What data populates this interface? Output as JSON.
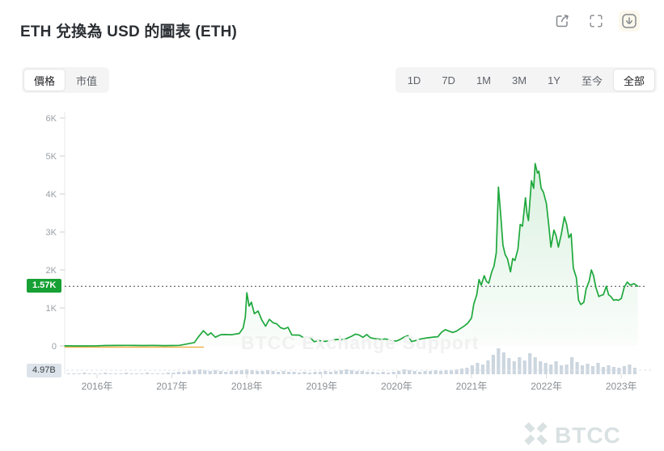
{
  "header": {
    "title": "ETH 兌換為 USD 的圖表 (ETH)",
    "icons": [
      "share-icon",
      "fullscreen-icon",
      "download-icon"
    ]
  },
  "toolbar": {
    "tabs": [
      {
        "label": "價格",
        "active": true
      },
      {
        "label": "市值",
        "active": false
      }
    ],
    "ranges": [
      {
        "label": "1D",
        "active": false
      },
      {
        "label": "7D",
        "active": false
      },
      {
        "label": "1M",
        "active": false
      },
      {
        "label": "3M",
        "active": false
      },
      {
        "label": "1Y",
        "active": false
      },
      {
        "label": "至今",
        "active": false
      },
      {
        "label": "全部",
        "active": true
      }
    ]
  },
  "watermark": {
    "text": "BTCC Exchange Support"
  },
  "brand": {
    "name": "BTCC"
  },
  "colors": {
    "line": "#1ea83c",
    "fill_top": "rgba(30,168,60,0.14)",
    "fill_bottom": "rgba(30,168,60,0.03)",
    "volume_bar": "#ccd6df",
    "price_badge_bg": "#17a034",
    "volume_badge_bg": "#dce3ea",
    "dotted_line": "#41464b",
    "axis": "#e8e8e8",
    "orange_segment": "#eeb14a"
  },
  "chart_data": {
    "type": "line",
    "title": "ETH 兌換為 USD 的圖表 (ETH)",
    "legend": "ETH/USD",
    "grid": false,
    "y_ticks": [
      "0",
      "1K",
      "2K",
      "3K",
      "4K",
      "5K",
      "6K"
    ],
    "y_tick_values": [
      0,
      1000,
      2000,
      3000,
      4000,
      5000,
      6000
    ],
    "ylim": [
      0,
      6000
    ],
    "x_ticks": [
      "2016年",
      "2017年",
      "2018年",
      "2019年",
      "2020年",
      "2021年",
      "2022年",
      "2023年"
    ],
    "x_tick_years": [
      2016,
      2017,
      2018,
      2019,
      2020,
      2021,
      2022,
      2023
    ],
    "xlim": [
      2015.57,
      2023.3
    ],
    "current_price_label": "1.57K",
    "current_price_value": 1570,
    "volume_label": "4.97B",
    "series": [
      {
        "name": "ETH/USD",
        "points": [
          [
            2015.57,
            3
          ],
          [
            2015.7,
            1
          ],
          [
            2015.85,
            1
          ],
          [
            2016.0,
            2
          ],
          [
            2016.1,
            10
          ],
          [
            2016.25,
            12
          ],
          [
            2016.4,
            14
          ],
          [
            2016.5,
            12
          ],
          [
            2016.6,
            11
          ],
          [
            2016.75,
            12
          ],
          [
            2016.9,
            8
          ],
          [
            2017.0,
            10
          ],
          [
            2017.1,
            15
          ],
          [
            2017.2,
            50
          ],
          [
            2017.3,
            90
          ],
          [
            2017.35,
            230
          ],
          [
            2017.42,
            400
          ],
          [
            2017.48,
            280
          ],
          [
            2017.52,
            345
          ],
          [
            2017.58,
            230
          ],
          [
            2017.65,
            295
          ],
          [
            2017.7,
            300
          ],
          [
            2017.8,
            295
          ],
          [
            2017.9,
            330
          ],
          [
            2017.95,
            470
          ],
          [
            2017.98,
            760
          ],
          [
            2018.0,
            1400
          ],
          [
            2018.03,
            1050
          ],
          [
            2018.06,
            1150
          ],
          [
            2018.1,
            850
          ],
          [
            2018.15,
            920
          ],
          [
            2018.2,
            680
          ],
          [
            2018.25,
            520
          ],
          [
            2018.3,
            700
          ],
          [
            2018.35,
            610
          ],
          [
            2018.4,
            580
          ],
          [
            2018.45,
            480
          ],
          [
            2018.5,
            450
          ],
          [
            2018.55,
            490
          ],
          [
            2018.6,
            290
          ],
          [
            2018.7,
            285
          ],
          [
            2018.75,
            230
          ],
          [
            2018.85,
            215
          ],
          [
            2018.9,
            110
          ],
          [
            2018.95,
            140
          ],
          [
            2019.0,
            130
          ],
          [
            2019.05,
            120
          ],
          [
            2019.1,
            140
          ],
          [
            2019.2,
            170
          ],
          [
            2019.3,
            165
          ],
          [
            2019.4,
            255
          ],
          [
            2019.45,
            310
          ],
          [
            2019.5,
            290
          ],
          [
            2019.55,
            225
          ],
          [
            2019.6,
            300
          ],
          [
            2019.65,
            215
          ],
          [
            2019.7,
            195
          ],
          [
            2019.8,
            170
          ],
          [
            2019.85,
            185
          ],
          [
            2019.95,
            135
          ],
          [
            2020.0,
            130
          ],
          [
            2020.05,
            175
          ],
          [
            2020.1,
            235
          ],
          [
            2020.15,
            270
          ],
          [
            2020.2,
            115
          ],
          [
            2020.25,
            140
          ],
          [
            2020.3,
            175
          ],
          [
            2020.4,
            210
          ],
          [
            2020.5,
            235
          ],
          [
            2020.55,
            240
          ],
          [
            2020.6,
            360
          ],
          [
            2020.65,
            430
          ],
          [
            2020.7,
            390
          ],
          [
            2020.75,
            355
          ],
          [
            2020.8,
            390
          ],
          [
            2020.85,
            455
          ],
          [
            2020.9,
            520
          ],
          [
            2020.95,
            600
          ],
          [
            2021.0,
            735
          ],
          [
            2021.03,
            1100
          ],
          [
            2021.07,
            1350
          ],
          [
            2021.1,
            1750
          ],
          [
            2021.13,
            1600
          ],
          [
            2021.17,
            1850
          ],
          [
            2021.2,
            1700
          ],
          [
            2021.23,
            1650
          ],
          [
            2021.27,
            1950
          ],
          [
            2021.3,
            2100
          ],
          [
            2021.33,
            2450
          ],
          [
            2021.36,
            4180
          ],
          [
            2021.39,
            3450
          ],
          [
            2021.42,
            2650
          ],
          [
            2021.45,
            2400
          ],
          [
            2021.48,
            2300
          ],
          [
            2021.52,
            1950
          ],
          [
            2021.55,
            2300
          ],
          [
            2021.58,
            2250
          ],
          [
            2021.62,
            2550
          ],
          [
            2021.65,
            3200
          ],
          [
            2021.68,
            3150
          ],
          [
            2021.72,
            3900
          ],
          [
            2021.74,
            3500
          ],
          [
            2021.76,
            3300
          ],
          [
            2021.8,
            4350
          ],
          [
            2021.83,
            4150
          ],
          [
            2021.85,
            4800
          ],
          [
            2021.88,
            4550
          ],
          [
            2021.9,
            4600
          ],
          [
            2021.93,
            4150
          ],
          [
            2021.96,
            4050
          ],
          [
            2022.0,
            3750
          ],
          [
            2022.03,
            3200
          ],
          [
            2022.06,
            2600
          ],
          [
            2022.1,
            3050
          ],
          [
            2022.13,
            2900
          ],
          [
            2022.16,
            2600
          ],
          [
            2022.2,
            2950
          ],
          [
            2022.24,
            3400
          ],
          [
            2022.27,
            3200
          ],
          [
            2022.3,
            2850
          ],
          [
            2022.33,
            2950
          ],
          [
            2022.36,
            2050
          ],
          [
            2022.4,
            1800
          ],
          [
            2022.43,
            1200
          ],
          [
            2022.46,
            1090
          ],
          [
            2022.5,
            1150
          ],
          [
            2022.53,
            1500
          ],
          [
            2022.57,
            1700
          ],
          [
            2022.6,
            2000
          ],
          [
            2022.63,
            1850
          ],
          [
            2022.66,
            1550
          ],
          [
            2022.7,
            1300
          ],
          [
            2022.73,
            1330
          ],
          [
            2022.76,
            1350
          ],
          [
            2022.8,
            1570
          ],
          [
            2022.83,
            1350
          ],
          [
            2022.86,
            1300
          ],
          [
            2022.9,
            1200
          ],
          [
            2022.93,
            1220
          ],
          [
            2022.96,
            1200
          ],
          [
            2023.0,
            1250
          ],
          [
            2023.04,
            1550
          ],
          [
            2023.08,
            1680
          ],
          [
            2023.12,
            1600
          ],
          [
            2023.17,
            1640
          ],
          [
            2023.22,
            1570
          ]
        ]
      }
    ],
    "volume_bars": [
      [
        2015.62,
        1
      ],
      [
        2015.69,
        1
      ],
      [
        2015.76,
        1
      ],
      [
        2015.83,
        2
      ],
      [
        2015.9,
        1
      ],
      [
        2015.97,
        1
      ],
      [
        2016.04,
        1
      ],
      [
        2016.11,
        2
      ],
      [
        2016.18,
        1
      ],
      [
        2016.25,
        1
      ],
      [
        2016.32,
        1
      ],
      [
        2016.39,
        2
      ],
      [
        2016.46,
        1
      ],
      [
        2016.53,
        1
      ],
      [
        2016.6,
        1
      ],
      [
        2016.67,
        2
      ],
      [
        2016.74,
        1
      ],
      [
        2016.81,
        1
      ],
      [
        2016.88,
        1
      ],
      [
        2016.95,
        2
      ],
      [
        2017.02,
        2
      ],
      [
        2017.09,
        3
      ],
      [
        2017.16,
        3
      ],
      [
        2017.23,
        4
      ],
      [
        2017.3,
        5
      ],
      [
        2017.37,
        6
      ],
      [
        2017.44,
        5
      ],
      [
        2017.51,
        4
      ],
      [
        2017.58,
        5
      ],
      [
        2017.65,
        4
      ],
      [
        2017.72,
        3
      ],
      [
        2017.79,
        4
      ],
      [
        2017.86,
        4
      ],
      [
        2017.93,
        5
      ],
      [
        2018.0,
        6
      ],
      [
        2018.07,
        5
      ],
      [
        2018.14,
        4
      ],
      [
        2018.21,
        4
      ],
      [
        2018.28,
        5
      ],
      [
        2018.35,
        4
      ],
      [
        2018.42,
        3
      ],
      [
        2018.49,
        4
      ],
      [
        2018.56,
        3
      ],
      [
        2018.63,
        3
      ],
      [
        2018.7,
        2
      ],
      [
        2018.77,
        3
      ],
      [
        2018.84,
        2
      ],
      [
        2018.91,
        3
      ],
      [
        2018.98,
        3
      ],
      [
        2019.05,
        4
      ],
      [
        2019.12,
        3
      ],
      [
        2019.19,
        4
      ],
      [
        2019.26,
        5
      ],
      [
        2019.33,
        6
      ],
      [
        2019.4,
        5
      ],
      [
        2019.47,
        4
      ],
      [
        2019.54,
        4
      ],
      [
        2019.61,
        3
      ],
      [
        2019.68,
        3
      ],
      [
        2019.75,
        2
      ],
      [
        2019.82,
        3
      ],
      [
        2019.89,
        2
      ],
      [
        2019.96,
        3
      ],
      [
        2020.03,
        4
      ],
      [
        2020.1,
        6
      ],
      [
        2020.17,
        5
      ],
      [
        2020.24,
        4
      ],
      [
        2020.31,
        3
      ],
      [
        2020.38,
        4
      ],
      [
        2020.45,
        4
      ],
      [
        2020.52,
        5
      ],
      [
        2020.59,
        4
      ],
      [
        2020.66,
        5
      ],
      [
        2020.73,
        5
      ],
      [
        2020.8,
        6
      ],
      [
        2020.87,
        7
      ],
      [
        2020.94,
        8
      ],
      [
        2021.01,
        11
      ],
      [
        2021.08,
        14
      ],
      [
        2021.15,
        12
      ],
      [
        2021.22,
        17
      ],
      [
        2021.29,
        24
      ],
      [
        2021.36,
        32
      ],
      [
        2021.43,
        27
      ],
      [
        2021.5,
        20
      ],
      [
        2021.57,
        16
      ],
      [
        2021.64,
        21
      ],
      [
        2021.71,
        17
      ],
      [
        2021.78,
        26
      ],
      [
        2021.85,
        21
      ],
      [
        2021.92,
        16
      ],
      [
        2021.99,
        14
      ],
      [
        2022.06,
        12
      ],
      [
        2022.13,
        16
      ],
      [
        2022.2,
        11
      ],
      [
        2022.27,
        12
      ],
      [
        2022.34,
        21
      ],
      [
        2022.41,
        15
      ],
      [
        2022.48,
        11
      ],
      [
        2022.55,
        13
      ],
      [
        2022.62,
        10
      ],
      [
        2022.69,
        14
      ],
      [
        2022.76,
        9
      ],
      [
        2022.83,
        11
      ],
      [
        2022.9,
        9
      ],
      [
        2022.97,
        8
      ],
      [
        2023.04,
        10
      ],
      [
        2023.11,
        12
      ],
      [
        2023.18,
        8
      ]
    ]
  }
}
